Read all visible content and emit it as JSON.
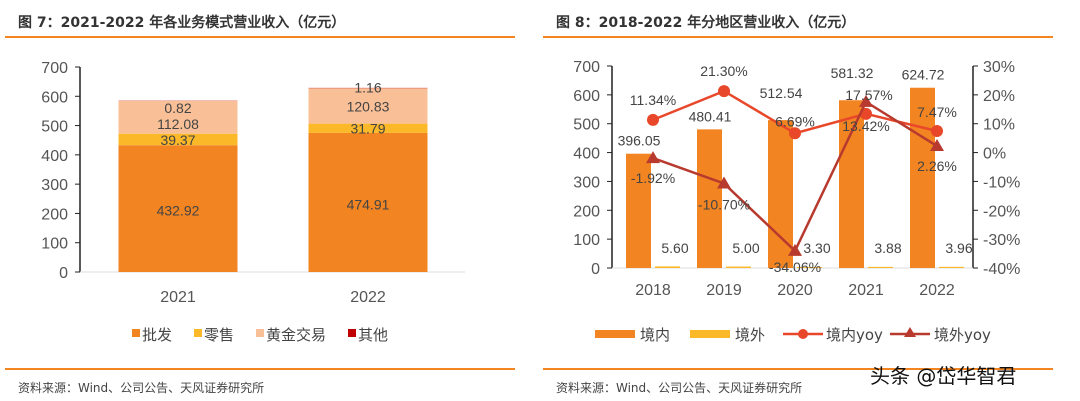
{
  "chart_data": [
    {
      "type": "bar",
      "stacked": true,
      "title": "图 7：2021-2022 年各业务模式营业收入（亿元）",
      "source": "资料来源：Wind、公司公告、天风证券研究所",
      "categories": [
        "2021",
        "2022"
      ],
      "ylim": [
        0,
        700
      ],
      "yticks": [
        "0",
        "100",
        "200",
        "300",
        "400",
        "500",
        "600",
        "700"
      ],
      "legend_position": "bottom",
      "series": [
        {
          "name": "批发",
          "color": "#F28422",
          "values": [
            432.92,
            474.91
          ],
          "labels": [
            "432.92",
            "474.91"
          ]
        },
        {
          "name": "零售",
          "color": "#FBB829",
          "values": [
            39.37,
            31.79
          ],
          "labels": [
            "39.37",
            "31.79"
          ]
        },
        {
          "name": "黄金交易",
          "color": "#F9C097",
          "values": [
            112.08,
            120.83
          ],
          "labels": [
            "112.08",
            "120.83"
          ]
        },
        {
          "name": "其他",
          "color": "#C00000",
          "values": [
            0.82,
            1.16
          ],
          "labels": [
            "0.82",
            "1.16"
          ]
        }
      ]
    },
    {
      "type": "bar+line",
      "title": "图 8：2018-2022 年分地区营业收入（亿元）",
      "source": "资料来源：Wind、公司公告、天风证券研究所",
      "categories": [
        "2018",
        "2019",
        "2020",
        "2021",
        "2022"
      ],
      "ylim": [
        0,
        700
      ],
      "yticks": [
        "0",
        "100",
        "200",
        "300",
        "400",
        "500",
        "600",
        "700"
      ],
      "y2lim": [
        -40,
        30
      ],
      "y2ticks": [
        "-40%",
        "-30%",
        "-20%",
        "-10%",
        "0%",
        "10%",
        "20%",
        "30%"
      ],
      "legend_position": "bottom",
      "series": [
        {
          "name": "境内",
          "kind": "bar",
          "color": "#F28422",
          "values": [
            396.05,
            480.41,
            512.54,
            581.32,
            624.72
          ],
          "labels": [
            "396.05",
            "480.41",
            "512.54",
            "581.32",
            "624.72"
          ]
        },
        {
          "name": "境外",
          "kind": "bar",
          "color": "#FBB829",
          "values": [
            5.6,
            5.0,
            3.3,
            3.88,
            3.96
          ],
          "labels": [
            "5.60",
            "5.00",
            "3.30",
            "3.88",
            "3.96"
          ]
        },
        {
          "name": "境内yoy",
          "kind": "line",
          "axis": "right",
          "marker": "circle",
          "color": "#E8472A",
          "values": [
            11.34,
            21.3,
            6.69,
            13.42,
            7.47
          ],
          "labels": [
            "11.34%",
            "21.30%",
            "6.69%",
            "13.42%",
            "7.47%"
          ]
        },
        {
          "name": "境外yoy",
          "kind": "line",
          "axis": "right",
          "marker": "triangle",
          "color": "#B83A2E",
          "values": [
            -1.92,
            -10.7,
            -34.06,
            17.57,
            2.26
          ],
          "labels": [
            "-1.92%",
            "-10.70%",
            "-34.06%",
            "17.57%",
            "2.26%"
          ]
        }
      ]
    }
  ],
  "accent_color": "#F28422",
  "watermark": "头条 @岱华智君"
}
